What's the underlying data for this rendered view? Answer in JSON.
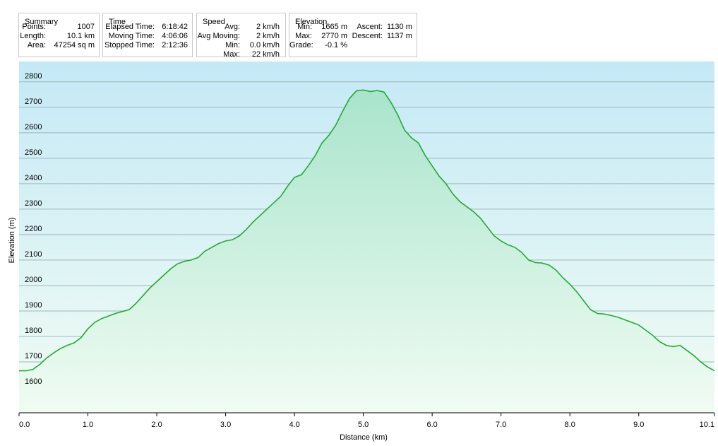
{
  "stats": {
    "summary": {
      "title": "Summary",
      "rows": [
        {
          "label": "Points:",
          "value": "1007"
        },
        {
          "label": "Length:",
          "value": "10.1 km"
        },
        {
          "label": "Area:",
          "value": "47254 sq m"
        }
      ]
    },
    "time": {
      "title": "Time",
      "rows": [
        {
          "label": "Elapsed Time:",
          "value": "6:18:42"
        },
        {
          "label": "Moving Time:",
          "value": "4:06:06"
        },
        {
          "label": "Stopped Time:",
          "value": "2:12:36"
        }
      ]
    },
    "speed": {
      "title": "Speed",
      "rows": [
        {
          "label": "Avg:",
          "value": "2 km/h"
        },
        {
          "label": "Avg Moving:",
          "value": "2 km/h"
        },
        {
          "label": "Min:",
          "value": "0.0 km/h"
        },
        {
          "label": "Max:",
          "value": "22 km/h"
        }
      ]
    },
    "elevation": {
      "title": "Elevation",
      "rows": [
        {
          "label": "Min:",
          "value": "1665 m",
          "label2": "Ascent:",
          "value2": "1130 m"
        },
        {
          "label": "Max:",
          "value": "2770 m",
          "label2": "Descent:",
          "value2": "1137 m"
        },
        {
          "label": "Grade:",
          "value": "-0.1 %",
          "label2": "",
          "value2": ""
        }
      ]
    }
  },
  "colors": {
    "line": "#22aa33",
    "fill_top": "#a9e4cc",
    "fill_bottom": "#f1fcf3",
    "bg_top": "#c4e9f6",
    "bg_bottom": "#f2fcf4"
  },
  "chart_data": {
    "type": "area",
    "xlabel": "Distance  (km)",
    "ylabel": "Elevation (m)",
    "xlim": [
      0,
      10.1
    ],
    "ylim": [
      1500,
      2880
    ],
    "x_ticks": [
      0,
      1,
      2,
      3,
      4,
      5,
      6,
      7,
      8,
      9,
      10.1
    ],
    "x_tick_labels": [
      "0.0",
      "1.0",
      "2.0",
      "3.0",
      "4.0",
      "5.0",
      "6.0",
      "7.0",
      "8.0",
      "9.0",
      "10.1"
    ],
    "y_ticks": [
      1600,
      1700,
      1800,
      1900,
      2000,
      2100,
      2200,
      2300,
      2400,
      2500,
      2600,
      2700,
      2800
    ],
    "grid": true,
    "x": [
      0,
      0.1,
      0.2,
      0.3,
      0.4,
      0.5,
      0.6,
      0.7,
      0.8,
      0.9,
      1.0,
      1.1,
      1.2,
      1.3,
      1.4,
      1.5,
      1.6,
      1.7,
      1.8,
      1.9,
      2.0,
      2.1,
      2.2,
      2.3,
      2.4,
      2.5,
      2.6,
      2.7,
      2.8,
      2.9,
      3.0,
      3.1,
      3.2,
      3.3,
      3.4,
      3.5,
      3.6,
      3.7,
      3.8,
      3.9,
      4.0,
      4.1,
      4.2,
      4.3,
      4.4,
      4.5,
      4.6,
      4.7,
      4.8,
      4.9,
      5.0,
      5.1,
      5.2,
      5.3,
      5.4,
      5.5,
      5.6,
      5.7,
      5.8,
      5.9,
      6.0,
      6.1,
      6.2,
      6.3,
      6.4,
      6.5,
      6.6,
      6.7,
      6.8,
      6.9,
      7.0,
      7.1,
      7.2,
      7.3,
      7.4,
      7.5,
      7.6,
      7.7,
      7.8,
      7.9,
      8.0,
      8.1,
      8.2,
      8.3,
      8.4,
      8.5,
      8.6,
      8.7,
      8.8,
      8.9,
      9.0,
      9.1,
      9.2,
      9.3,
      9.4,
      9.5,
      9.6,
      9.7,
      9.8,
      9.9,
      10.0,
      10.1
    ],
    "y": [
      1665,
      1665,
      1670,
      1690,
      1715,
      1735,
      1752,
      1765,
      1775,
      1795,
      1830,
      1855,
      1870,
      1880,
      1890,
      1898,
      1905,
      1930,
      1960,
      1990,
      2015,
      2040,
      2065,
      2085,
      2095,
      2100,
      2110,
      2135,
      2150,
      2165,
      2175,
      2180,
      2195,
      2220,
      2250,
      2275,
      2300,
      2325,
      2350,
      2390,
      2425,
      2435,
      2470,
      2510,
      2560,
      2590,
      2630,
      2685,
      2735,
      2765,
      2768,
      2762,
      2766,
      2760,
      2720,
      2670,
      2610,
      2580,
      2560,
      2510,
      2470,
      2430,
      2400,
      2360,
      2330,
      2310,
      2290,
      2265,
      2230,
      2195,
      2175,
      2160,
      2150,
      2130,
      2100,
      2090,
      2088,
      2080,
      2060,
      2030,
      2005,
      1975,
      1940,
      1905,
      1890,
      1888,
      1882,
      1875,
      1865,
      1855,
      1845,
      1825,
      1805,
      1780,
      1765,
      1760,
      1765,
      1745,
      1725,
      1700,
      1680,
      1665
    ]
  }
}
